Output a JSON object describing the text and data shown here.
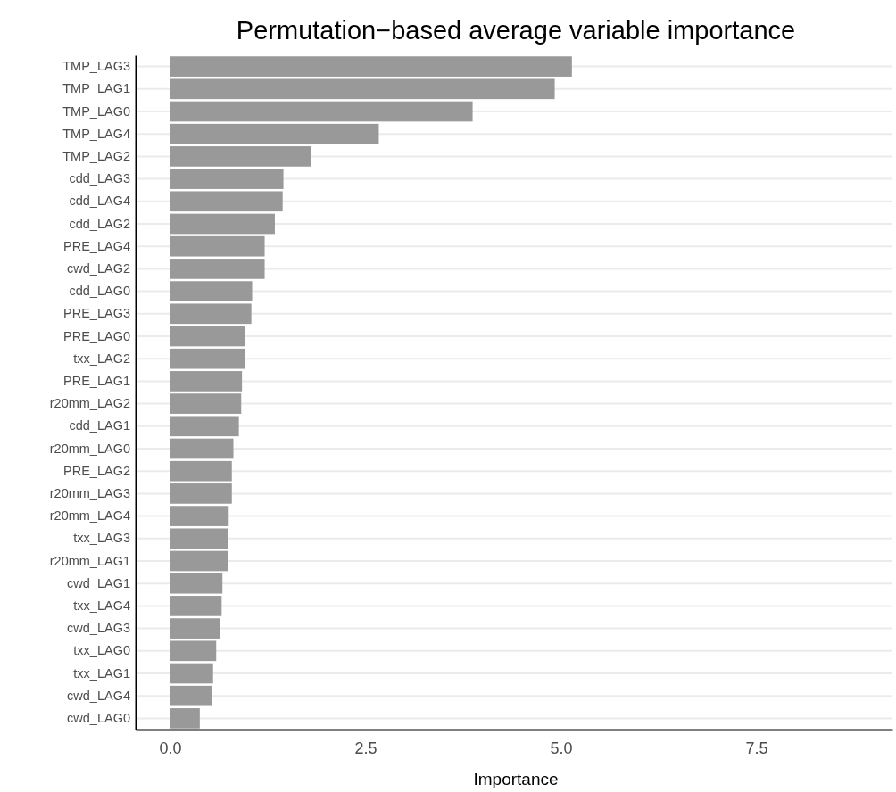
{
  "chart_data": {
    "type": "bar",
    "orientation": "horizontal",
    "title": "Permutation−based average variable importance",
    "xlabel": "Importance",
    "categories": [
      "TMP_LAG3",
      "TMP_LAG1",
      "TMP_LAG0",
      "TMP_LAG4",
      "TMP_LAG2",
      "cdd_LAG3",
      "cdd_LAG4",
      "cdd_LAG2",
      "PRE_LAG4",
      "cwd_LAG2",
      "cdd_LAG0",
      "PRE_LAG3",
      "PRE_LAG0",
      "txx_LAG2",
      "PRE_LAG1",
      "r20mm_LAG2",
      "cdd_LAG1",
      "r20mm_LAG0",
      "PRE_LAG2",
      "r20mm_LAG3",
      "r20mm_LAG4",
      "txx_LAG3",
      "r20mm_LAG1",
      "cwd_LAG1",
      "txx_LAG4",
      "cwd_LAG3",
      "txx_LAG0",
      "txx_LAG1",
      "cwd_LAG4",
      "cwd_LAG0"
    ],
    "values": [
      5.14,
      4.92,
      3.87,
      2.67,
      1.8,
      1.45,
      1.44,
      1.34,
      1.21,
      1.21,
      1.05,
      1.04,
      0.96,
      0.96,
      0.92,
      0.91,
      0.88,
      0.81,
      0.79,
      0.79,
      0.75,
      0.74,
      0.74,
      0.67,
      0.66,
      0.64,
      0.59,
      0.55,
      0.53,
      0.38
    ],
    "color": "#999999",
    "xlim": [
      -0.44,
      9.24
    ],
    "xticks": [
      {
        "value": 0,
        "label": "0.0"
      },
      {
        "value": 2.5,
        "label": "2.5"
      },
      {
        "value": 5,
        "label": "5.0"
      },
      {
        "value": 7.5,
        "label": "7.5"
      }
    ],
    "grid": "y"
  }
}
